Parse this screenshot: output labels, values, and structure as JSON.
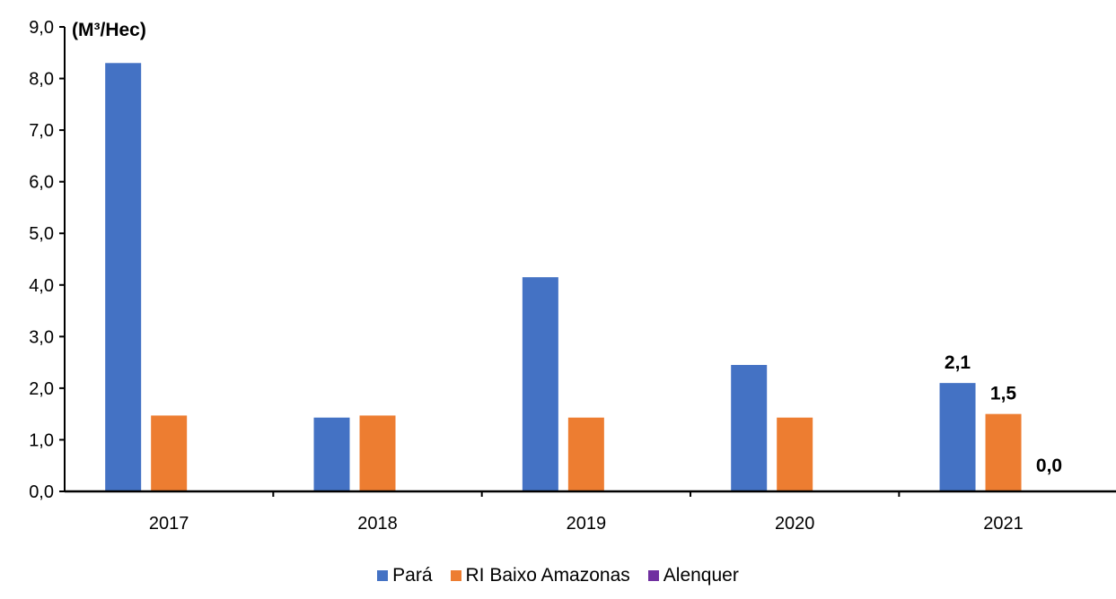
{
  "chart_data": {
    "type": "bar",
    "unit_label": "(M³/Hec)",
    "categories": [
      "2017",
      "2018",
      "2019",
      "2020",
      "2021"
    ],
    "series": [
      {
        "name": "Pará",
        "color": "#4472C4",
        "values": [
          8.3,
          1.43,
          4.15,
          2.45,
          2.1
        ]
      },
      {
        "name": "RI Baixo Amazonas",
        "color": "#ED7D31",
        "values": [
          1.47,
          1.47,
          1.43,
          1.43,
          1.5
        ]
      },
      {
        "name": "Alenquer",
        "color": "#7030A0",
        "values": [
          0.0,
          0.0,
          0.0,
          0.0,
          0.0
        ]
      }
    ],
    "y_ticks": [
      "0,0",
      "1,0",
      "2,0",
      "3,0",
      "4,0",
      "5,0",
      "6,0",
      "7,0",
      "8,0",
      "9,0"
    ],
    "ylim": [
      0,
      9
    ],
    "data_labels": [
      {
        "category": "2021",
        "series": "Pará",
        "text": "2,1"
      },
      {
        "category": "2021",
        "series": "RI Baixo Amazonas",
        "text": "1,5"
      },
      {
        "category": "2021",
        "series": "Alenquer",
        "text": "0,0"
      }
    ],
    "grid": false,
    "legend_position": "bottom"
  }
}
